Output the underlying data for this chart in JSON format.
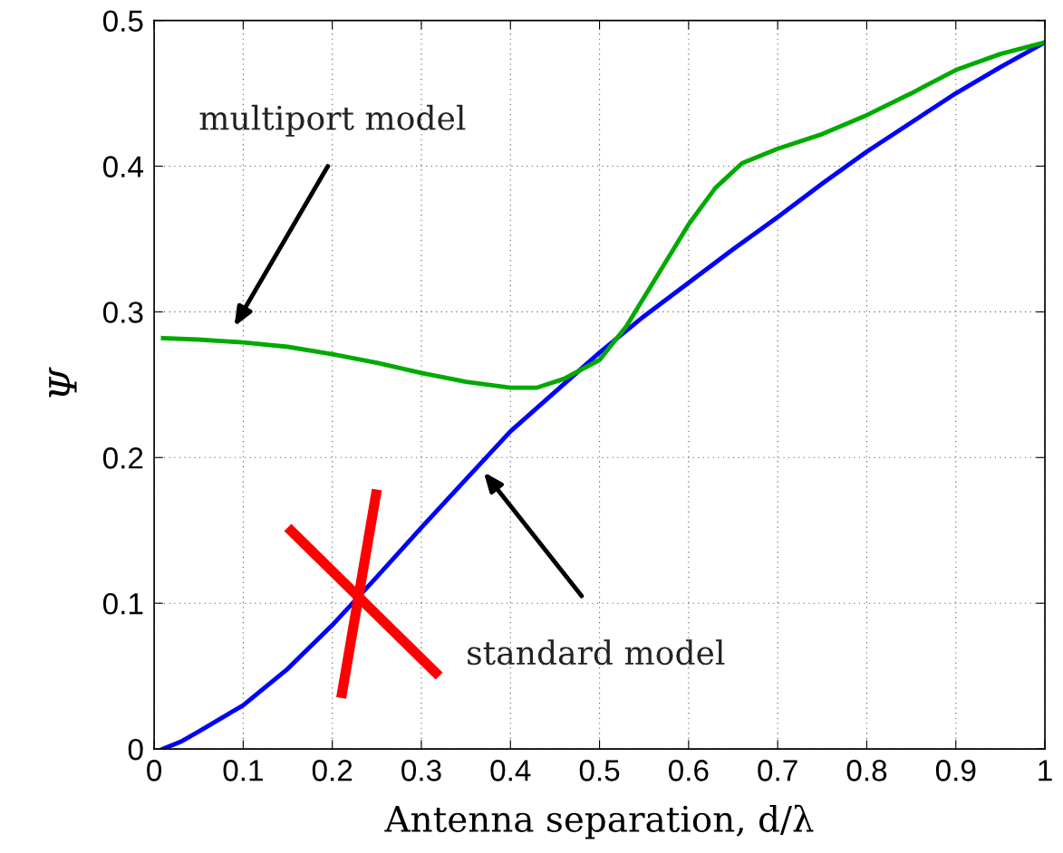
{
  "chart_data": {
    "type": "line",
    "xlabel": "Antenna separation, d/λ",
    "ylabel": "Ψ",
    "xlim": [
      0,
      1
    ],
    "ylim": [
      0,
      0.5
    ],
    "xticks": [
      0,
      0.1,
      0.2,
      0.3,
      0.4,
      0.5,
      0.6,
      0.7,
      0.8,
      0.9,
      1
    ],
    "yticks": [
      0,
      0.1,
      0.2,
      0.3,
      0.4,
      0.5
    ],
    "grid": true,
    "line_style": "solid",
    "marker": "none",
    "series": [
      {
        "color": "#0000ff",
        "x": [
          0.01,
          0.03,
          0.05,
          0.1,
          0.15,
          0.2,
          0.25,
          0.3,
          0.35,
          0.4,
          0.45,
          0.5,
          0.55,
          0.6,
          0.65,
          0.7,
          0.75,
          0.8,
          0.85,
          0.9,
          0.95,
          1.0
        ],
        "values": [
          0,
          0.005,
          0.012,
          0.03,
          0.055,
          0.085,
          0.118,
          0.152,
          0.185,
          0.218,
          0.245,
          0.272,
          0.297,
          0.32,
          0.343,
          0.365,
          0.388,
          0.41,
          0.43,
          0.45,
          0.468,
          0.485
        ]
      },
      {
        "color": "#00aa00",
        "x": [
          0.01,
          0.05,
          0.1,
          0.15,
          0.2,
          0.25,
          0.3,
          0.35,
          0.4,
          0.43,
          0.46,
          0.5,
          0.53,
          0.56,
          0.6,
          0.63,
          0.66,
          0.7,
          0.75,
          0.8,
          0.85,
          0.9,
          0.95,
          1.0
        ],
        "values": [
          0.282,
          0.281,
          0.279,
          0.276,
          0.271,
          0.265,
          0.258,
          0.252,
          0.248,
          0.248,
          0.254,
          0.267,
          0.29,
          0.32,
          0.36,
          0.385,
          0.402,
          0.412,
          0.422,
          0.435,
          0.45,
          0.466,
          0.477,
          0.485
        ]
      }
    ],
    "annotations": [
      "multiport model",
      "standard model"
    ]
  }
}
